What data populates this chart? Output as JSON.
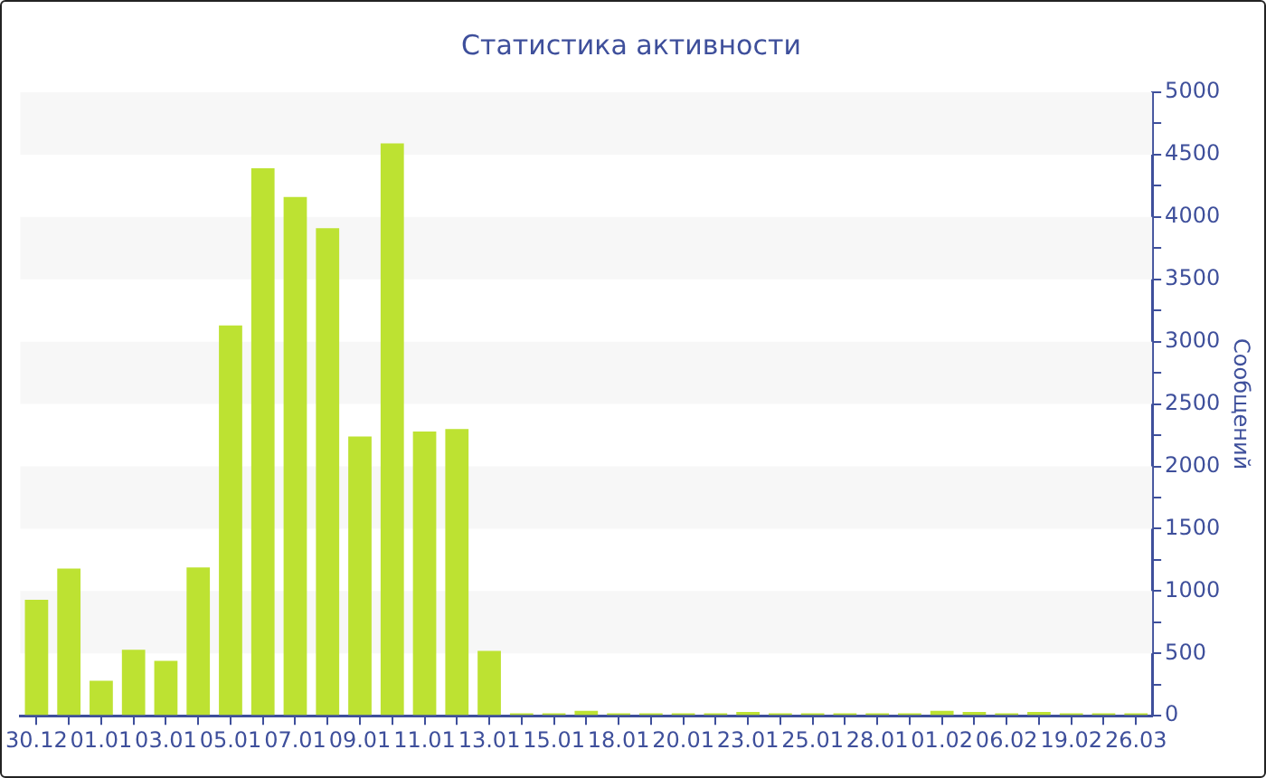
{
  "chart_data": {
    "type": "bar",
    "title": "Статистика активности",
    "ylabel": "Сообщений",
    "categories": [
      "30.12",
      null,
      "01.01",
      null,
      "03.01",
      null,
      "05.01",
      null,
      "07.01",
      null,
      "09.01",
      null,
      "11.01",
      null,
      "13.01",
      null,
      "15.01",
      null,
      "18.01",
      null,
      "20.01",
      null,
      "23.01",
      null,
      "25.01",
      null,
      "28.01",
      null,
      "01.02",
      null,
      "06.02",
      null,
      "19.02",
      null,
      "26.03"
    ],
    "values": [
      930,
      1180,
      280,
      530,
      440,
      1190,
      3130,
      4390,
      4160,
      3910,
      2240,
      4590,
      2280,
      2300,
      520,
      20,
      20,
      40,
      20,
      20,
      20,
      20,
      30,
      20,
      20,
      20,
      20,
      20,
      40,
      30,
      20,
      30,
      20,
      20,
      20
    ],
    "color": "#bde232",
    "ylim": [
      0,
      5000
    ],
    "yticks": [
      0,
      {
        "value": 250,
        "label": null
      },
      500,
      {
        "value": 750,
        "label": null
      },
      1000,
      {
        "value": 1250,
        "label": null
      },
      1500,
      {
        "value": 1750,
        "label": null
      },
      2000,
      {
        "value": 2250,
        "label": null
      },
      2500,
      {
        "value": 2750,
        "label": null
      },
      3000,
      {
        "value": 3250,
        "label": null
      },
      3500,
      {
        "value": 3750,
        "label": null
      },
      4000,
      {
        "value": 4250,
        "label": null
      },
      4500,
      {
        "value": 4750,
        "label": null
      },
      5000
    ],
    "bands": [
      {
        "axis": "y",
        "from": 500,
        "to": 1000,
        "color": "#f7f7f7"
      },
      {
        "axis": "y",
        "from": 1500,
        "to": 2000,
        "color": "#f7f7f7"
      },
      {
        "axis": "y",
        "from": 2500,
        "to": 3000,
        "color": "#f7f7f7"
      },
      {
        "axis": "y",
        "from": 3500,
        "to": 4000,
        "color": "#f7f7f7"
      },
      {
        "axis": "y",
        "from": 4500,
        "to": 5000,
        "color": "#f7f7f7"
      }
    ],
    "legend": false
  }
}
